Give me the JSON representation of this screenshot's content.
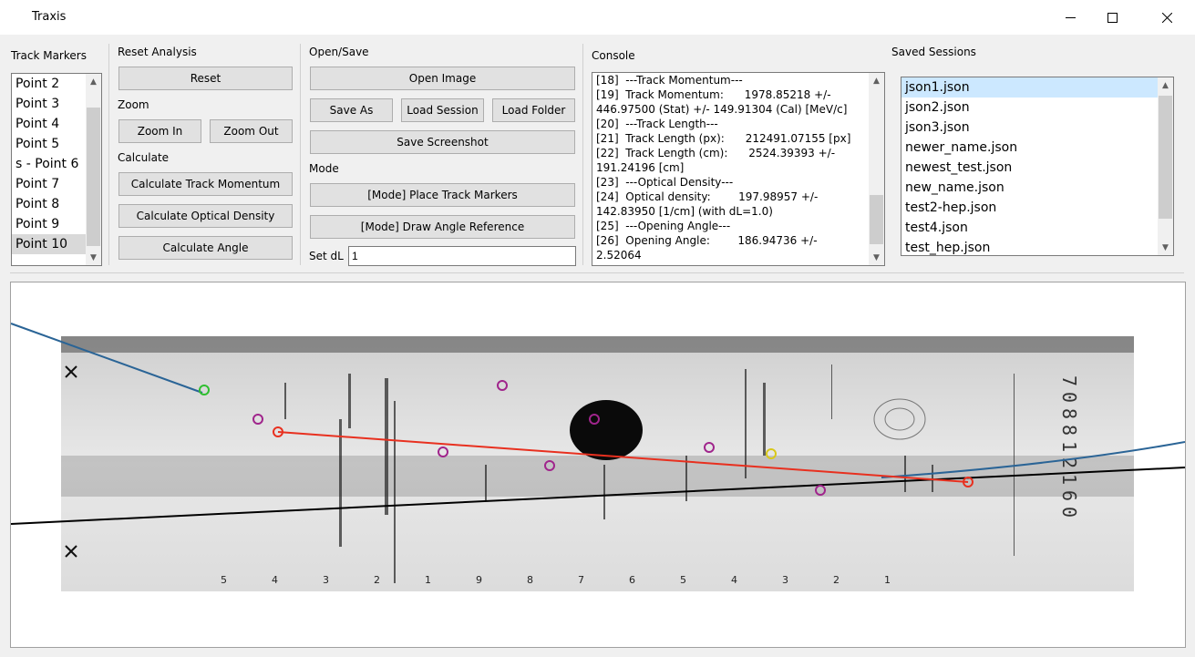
{
  "window": {
    "title": "Traxis"
  },
  "track_markers": {
    "label": "Track Markers",
    "items": [
      "Point 2",
      "Point 3",
      "Point 4",
      "Point 5",
      "s - Point 6",
      "Point 7",
      "Point 8",
      "Point 9",
      "Point 10"
    ],
    "selected": "Point 10"
  },
  "reset_analysis": {
    "label": "Reset Analysis",
    "reset_button": "Reset"
  },
  "zoom": {
    "label": "Zoom",
    "zoom_in": "Zoom In",
    "zoom_out": "Zoom Out"
  },
  "calculate": {
    "label": "Calculate",
    "track_momentum": "Calculate Track Momentum",
    "optical_density": "Calculate Optical Density",
    "angle": "Calculate Angle"
  },
  "open_save": {
    "label": "Open/Save",
    "open_image": "Open Image",
    "save_as": "Save As",
    "load_session": "Load Session",
    "load_folder": "Load Folder",
    "save_screenshot": "Save Screenshot"
  },
  "mode": {
    "label": "Mode",
    "place_markers": "[Mode] Place Track Markers",
    "draw_angle": "[Mode] Draw Angle Reference"
  },
  "set_dl": {
    "label": "Set dL",
    "value": "1"
  },
  "console": {
    "label": "Console",
    "lines": [
      "[18]  ---Track Momentum---",
      "[19]  Track Momentum:      1978.85218 +/-",
      "446.97500 (Stat) +/- 149.91304 (Cal) [MeV/c]",
      "[20]  ---Track Length---",
      "[21]  Track Length (px):      212491.07155 [px]",
      "[22]  Track Length (cm):      2524.39393 +/-",
      "191.24196 [cm]",
      "[23]  ---Optical Density---",
      "[24]  Optical density:        197.98957 +/-",
      "142.83950 [1/cm] (with dL=1.0)",
      "[25]  ---Opening Angle---",
      "[26]  Opening Angle:        186.94736 +/-",
      "2.52064"
    ]
  },
  "saved_sessions": {
    "label": "Saved Sessions",
    "items": [
      "json1.json",
      "json2.json",
      "json3.json",
      "newer_name.json",
      "newest_test.json",
      "new_name.json",
      "test2-hep.json",
      "test4.json",
      "test_hep.json"
    ],
    "selected": "json1.json"
  },
  "image_labels": {
    "side_characters": [
      "7",
      "0",
      "8",
      "8",
      "1",
      "2",
      "1",
      "6",
      "0"
    ],
    "bottom_ticks": [
      "5",
      "4",
      "3",
      "2",
      "1",
      "9",
      "8",
      "7",
      "6",
      "5",
      "4",
      "3",
      "2",
      "1"
    ]
  },
  "colors": {
    "track_line": "#e8301f",
    "reference_line": "#000000",
    "curve_line": "#2a6496",
    "marker_magenta": "#a0258c",
    "marker_green": "#2fbf2f",
    "marker_yellow": "#d8c81a",
    "marker_red": "#e8301f"
  }
}
